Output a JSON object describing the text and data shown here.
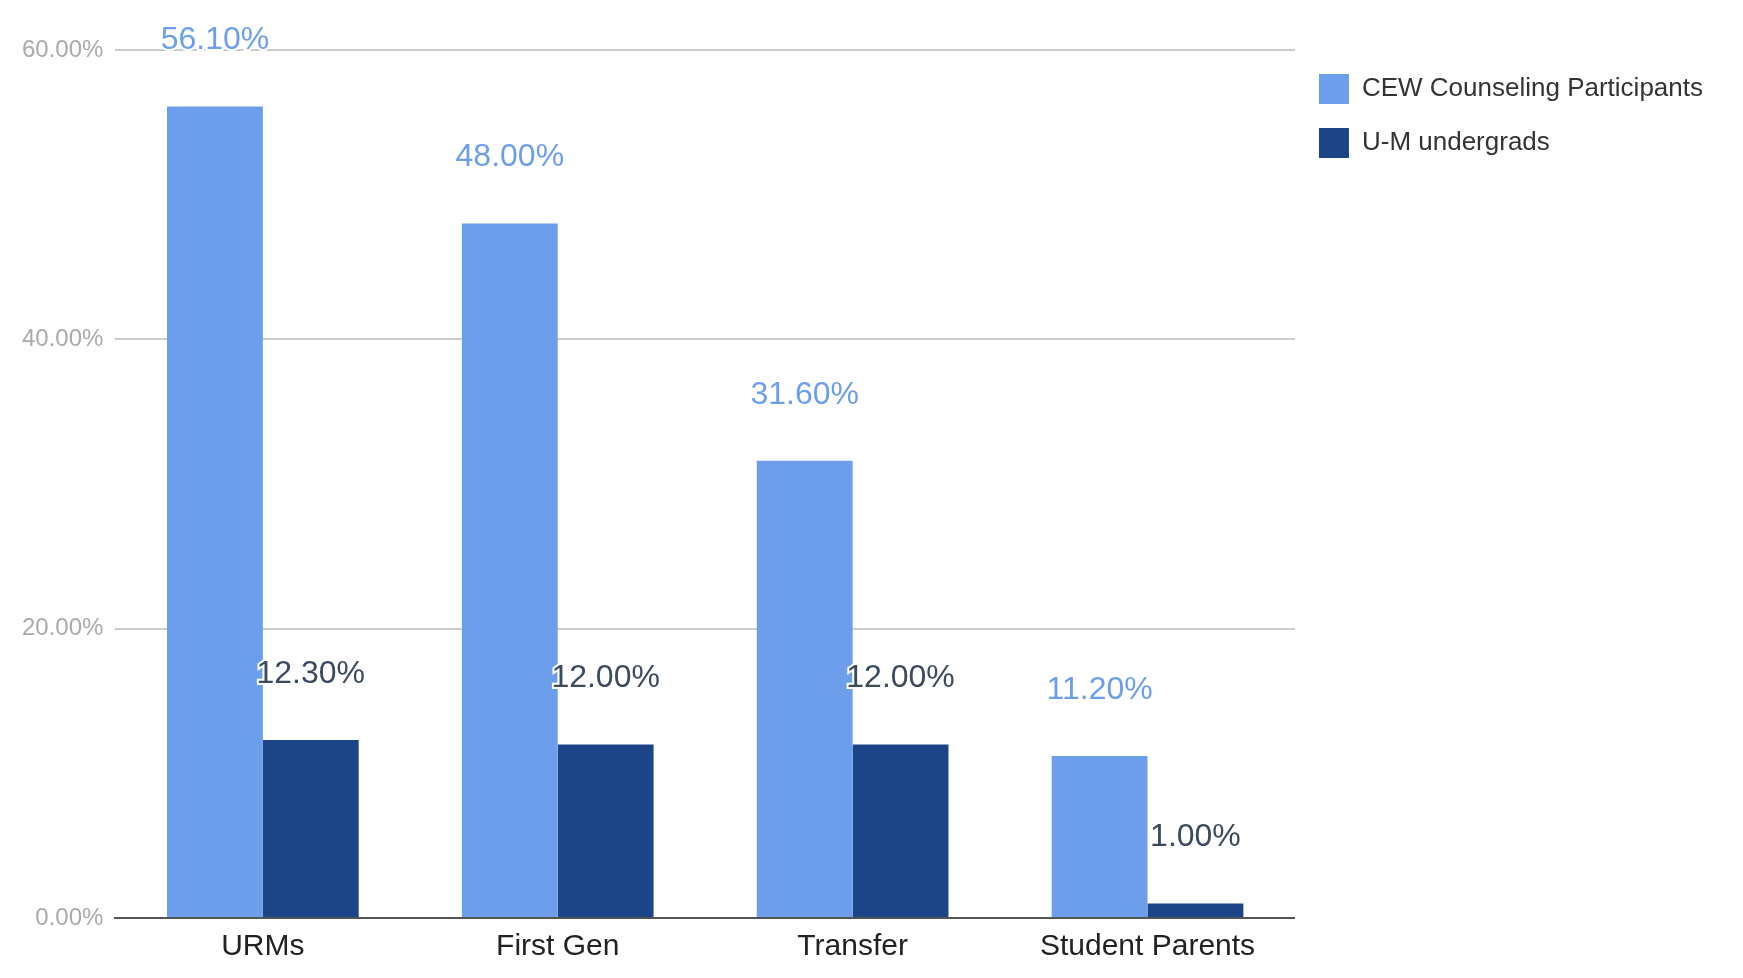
{
  "chart_data": {
    "type": "bar",
    "categories": [
      "URMs",
      "First Gen",
      "Transfer",
      "Student Parents"
    ],
    "series": [
      {
        "name": "CEW Counseling Participants",
        "color": "#6d9eeb",
        "values": [
          56.1,
          48.0,
          31.6,
          11.2
        ],
        "value_labels": [
          "56.10%",
          "48.00%",
          "31.60%",
          "11.20%"
        ]
      },
      {
        "name": "U-M undergrads",
        "color": "#1c4587",
        "values": [
          12.3,
          12.0,
          12.0,
          1.0
        ],
        "value_labels": [
          "12.30%",
          "12.00%",
          "12.00%",
          "1.00%"
        ]
      }
    ],
    "ylim": [
      0,
      60
    ],
    "yticks": [
      {
        "value": 0,
        "label": "0.00%"
      },
      {
        "value": 20,
        "label": "20.00%"
      },
      {
        "value": 40,
        "label": "40.00%"
      },
      {
        "value": 60,
        "label": "60.00%"
      }
    ],
    "grid": "y",
    "legend": "top right"
  }
}
